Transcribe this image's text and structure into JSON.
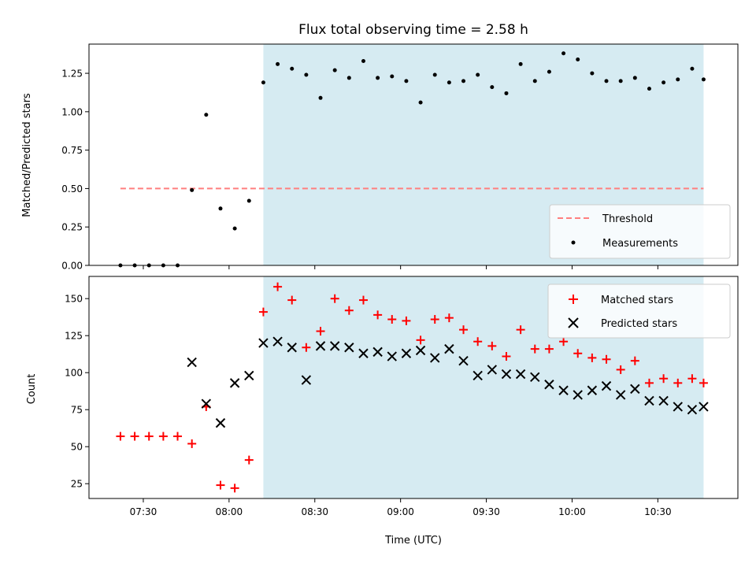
{
  "chart_data": [
    {
      "type": "scatter",
      "title": "Flux total observing time = 2.58 h",
      "xlabel": "",
      "ylabel": "Matched/Predicted stars",
      "ylim": [
        0.0,
        1.44
      ],
      "yticks": [
        0.0,
        0.25,
        0.5,
        0.75,
        1.0,
        1.25
      ],
      "ytick_labels": [
        "0.00",
        "0.25",
        "0.50",
        "0.75",
        "1.00",
        "1.25"
      ],
      "xlim": [
        "07:11",
        "10:58"
      ],
      "xticks": [
        "07:30",
        "08:00",
        "08:30",
        "09:00",
        "09:30",
        "10:00",
        "10:30"
      ],
      "shaded_span": [
        "08:12",
        "10:46"
      ],
      "legend_position": "lower right",
      "series": [
        {
          "name": "Threshold",
          "style": "dashed-line",
          "color": "#ff7f7f",
          "x": [
            "07:22",
            "10:46"
          ],
          "y": [
            0.5,
            0.5
          ]
        },
        {
          "name": "Measurements",
          "style": "dot",
          "color": "#000000",
          "x": [
            "07:22",
            "07:27",
            "07:32",
            "07:37",
            "07:42",
            "07:47",
            "07:52",
            "07:57",
            "08:02",
            "08:07",
            "08:12",
            "08:17",
            "08:22",
            "08:27",
            "08:32",
            "08:37",
            "08:42",
            "08:47",
            "08:52",
            "08:57",
            "09:02",
            "09:07",
            "09:12",
            "09:17",
            "09:22",
            "09:27",
            "09:32",
            "09:37",
            "09:42",
            "09:47",
            "09:52",
            "09:57",
            "10:02",
            "10:07",
            "10:12",
            "10:17",
            "10:22",
            "10:27",
            "10:32",
            "10:37",
            "10:42",
            "10:46"
          ],
          "y": [
            0.0,
            0.0,
            0.0,
            0.0,
            0.0,
            0.49,
            0.98,
            0.37,
            0.24,
            0.42,
            1.19,
            1.31,
            1.28,
            1.24,
            1.09,
            1.27,
            1.22,
            1.33,
            1.22,
            1.23,
            1.2,
            1.06,
            1.24,
            1.19,
            1.2,
            1.24,
            1.16,
            1.12,
            1.31,
            1.2,
            1.26,
            1.38,
            1.34,
            1.25,
            1.2,
            1.2,
            1.22,
            1.15,
            1.19,
            1.21,
            1.28,
            1.21
          ]
        }
      ]
    },
    {
      "type": "scatter",
      "title": "",
      "xlabel": "Time (UTC)",
      "ylabel": "Count",
      "ylim": [
        15,
        165
      ],
      "yticks": [
        25,
        50,
        75,
        100,
        125,
        150
      ],
      "ytick_labels": [
        "25",
        "50",
        "75",
        "100",
        "125",
        "150"
      ],
      "xlim": [
        "07:11",
        "10:58"
      ],
      "xticks": [
        "07:30",
        "08:00",
        "08:30",
        "09:00",
        "09:30",
        "10:00",
        "10:30"
      ],
      "shaded_span": [
        "08:12",
        "10:46"
      ],
      "legend_position": "upper right",
      "series": [
        {
          "name": "Matched stars",
          "style": "plus",
          "color": "#ff0000",
          "x": [
            "07:22",
            "07:27",
            "07:32",
            "07:37",
            "07:42",
            "07:47",
            "07:52",
            "07:57",
            "08:02",
            "08:07",
            "08:12",
            "08:17",
            "08:22",
            "08:27",
            "08:32",
            "08:37",
            "08:42",
            "08:47",
            "08:52",
            "08:57",
            "09:02",
            "09:07",
            "09:12",
            "09:17",
            "09:22",
            "09:27",
            "09:32",
            "09:37",
            "09:42",
            "09:47",
            "09:52",
            "09:57",
            "10:02",
            "10:07",
            "10:12",
            "10:17",
            "10:22",
            "10:27",
            "10:32",
            "10:37",
            "10:42",
            "10:46"
          ],
          "y": [
            57,
            57,
            57,
            57,
            57,
            52,
            77,
            24,
            22,
            41,
            141,
            158,
            149,
            117,
            128,
            150,
            142,
            149,
            139,
            136,
            135,
            122,
            136,
            137,
            129,
            121,
            118,
            111,
            129,
            116,
            116,
            121,
            113,
            110,
            109,
            102,
            108,
            93,
            96,
            93,
            96,
            93
          ]
        },
        {
          "name": "Predicted stars",
          "style": "x",
          "color": "#000000",
          "x": [
            "07:47",
            "07:52",
            "07:57",
            "08:02",
            "08:07",
            "08:12",
            "08:17",
            "08:22",
            "08:27",
            "08:32",
            "08:37",
            "08:42",
            "08:47",
            "08:52",
            "08:57",
            "09:02",
            "09:07",
            "09:12",
            "09:17",
            "09:22",
            "09:27",
            "09:32",
            "09:37",
            "09:42",
            "09:47",
            "09:52",
            "09:57",
            "10:02",
            "10:07",
            "10:12",
            "10:17",
            "10:22",
            "10:27",
            "10:32",
            "10:37",
            "10:42",
            "10:46"
          ],
          "y": [
            107,
            79,
            66,
            93,
            98,
            120,
            121,
            117,
            95,
            118,
            118,
            117,
            113,
            114,
            111,
            113,
            115,
            110,
            116,
            108,
            98,
            102,
            99,
            99,
            97,
            92,
            88,
            85,
            88,
            91,
            85,
            89,
            81,
            81,
            77,
            75,
            77
          ]
        }
      ]
    }
  ]
}
